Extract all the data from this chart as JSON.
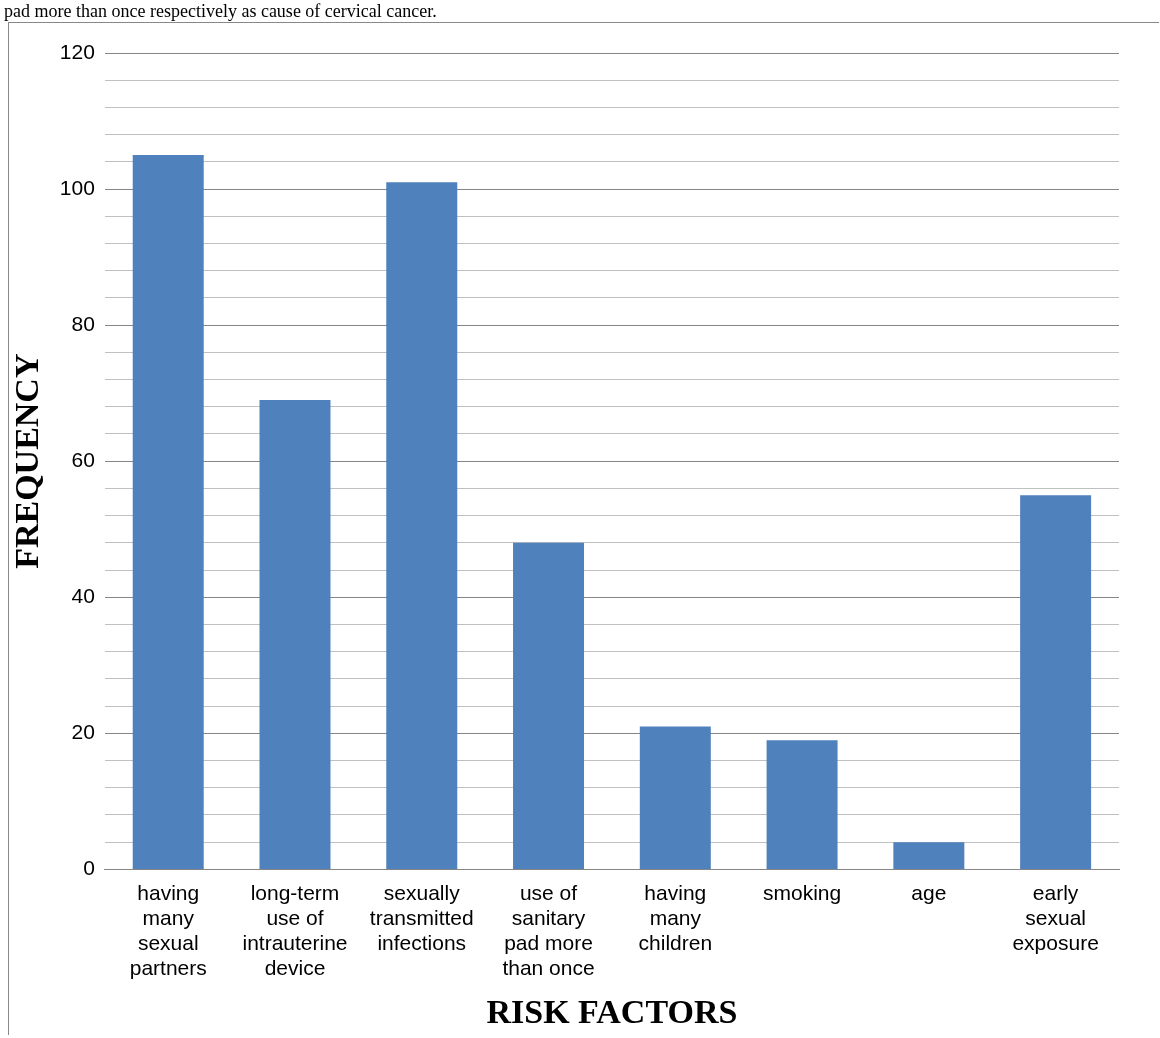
{
  "chart_data": {
    "type": "bar",
    "annotations": [
      "pad more than once respectively as cause of cervical cancer."
    ],
    "xlabel": "RISK FACTORS",
    "ylabel": "FREQUENCY",
    "categories": [
      "having many sexual partners",
      "long-term use of intrauterine device",
      "sexually transmitted infections",
      "use of sanitary pad more than once",
      "having many children",
      "smoking",
      "age",
      "early sexual exposure"
    ],
    "values": [
      105,
      69,
      101,
      48,
      21,
      19,
      4,
      55
    ],
    "color": "#4f81bd",
    "ylim": [
      0,
      120
    ],
    "yticks": [
      0,
      {
        "value": 4,
        "label": null
      },
      {
        "value": 8,
        "label": null
      },
      {
        "value": 12,
        "label": null
      },
      {
        "value": 16,
        "label": null
      },
      20,
      {
        "value": 24,
        "label": null
      },
      {
        "value": 28,
        "label": null
      },
      {
        "value": 32,
        "label": null
      },
      {
        "value": 36,
        "label": null
      },
      40,
      {
        "value": 44,
        "label": null
      },
      {
        "value": 48,
        "label": null
      },
      {
        "value": 52,
        "label": null
      },
      {
        "value": 56,
        "label": null
      },
      60,
      {
        "value": 64,
        "label": null
      },
      {
        "value": 68,
        "label": null
      },
      {
        "value": 72,
        "label": null
      },
      {
        "value": 76,
        "label": null
      },
      80,
      {
        "value": 84,
        "label": null
      },
      {
        "value": 88,
        "label": null
      },
      {
        "value": 92,
        "label": null
      },
      {
        "value": 96,
        "label": null
      },
      100,
      {
        "value": 104,
        "label": null
      },
      {
        "value": 108,
        "label": null
      },
      {
        "value": 112,
        "label": null
      },
      {
        "value": 116,
        "label": null
      },
      120
    ],
    "grid": "y",
    "legend": false
  }
}
